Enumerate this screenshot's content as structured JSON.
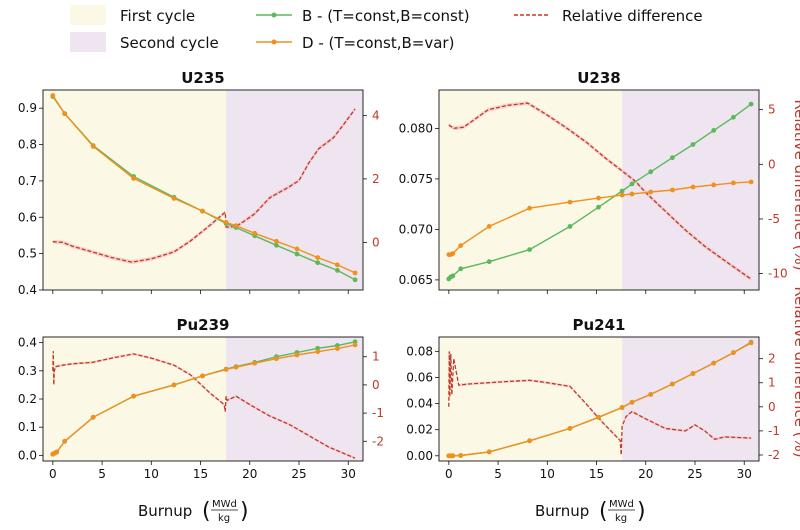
{
  "legend": {
    "first_cycle": "First cycle",
    "second_cycle": "Second cycle",
    "series_b": "B - (T=const,B=const)",
    "series_d": "D - (T=const,B=var)",
    "relative_difference": "Relative difference"
  },
  "colors": {
    "series_b": "#5cb85c",
    "series_d": "#f0901e",
    "relative_difference": "#c0392b",
    "first_cycle_bg": "#fbf8e6",
    "second_cycle_bg": "#efe5f0"
  },
  "x_axis": {
    "label": "Burnup",
    "unit_numerator": "MWd",
    "unit_denominator": "kg"
  },
  "right_axis_label": "Relative difference (%)",
  "chart_data": [
    {
      "type": "line",
      "title": "U235",
      "cycle_boundary": 17.6,
      "xlim": [
        -1,
        31.5
      ],
      "ylim": [
        0.4,
        0.95
      ],
      "y2lim": [
        -1.5,
        4.8
      ],
      "xticks": [
        "0",
        "5",
        "10",
        "15",
        "20",
        "25",
        "30"
      ],
      "yticks": [
        "0.4",
        "0.5",
        "0.6",
        "0.7",
        "0.8",
        "0.9"
      ],
      "y2ticks": [
        "0",
        "2",
        "4"
      ],
      "x": [
        0,
        1.2,
        4.1,
        8.2,
        12.3,
        15.2,
        17.6,
        18.6,
        20.5,
        22.7,
        24.8,
        26.9,
        28.9,
        30.7
      ],
      "series": [
        {
          "name": "B - (T=const,B=const)",
          "values": [
            0.932,
            0.885,
            0.797,
            0.712,
            0.655,
            0.617,
            0.583,
            0.572,
            0.549,
            0.523,
            0.499,
            0.475,
            0.454,
            0.428
          ]
        },
        {
          "name": "D - (T=const,B=var)",
          "values": [
            0.935,
            0.885,
            0.795,
            0.707,
            0.652,
            0.617,
            0.586,
            0.577,
            0.556,
            0.534,
            0.513,
            0.489,
            0.469,
            0.447
          ]
        }
      ],
      "relative_difference": {
        "x": [
          0,
          1,
          2,
          4,
          6,
          8,
          10,
          12.3,
          14,
          16,
          17.5,
          17.6,
          18.6,
          19.5,
          20.5,
          22,
          24,
          25,
          26,
          27,
          28.5,
          29.5,
          30.7
        ],
        "values": [
          0.02,
          0.0,
          -0.12,
          -0.3,
          -0.48,
          -0.62,
          -0.52,
          -0.3,
          0.05,
          0.55,
          0.95,
          0.48,
          0.5,
          0.68,
          0.9,
          1.4,
          1.75,
          1.95,
          2.5,
          2.95,
          3.3,
          3.7,
          4.2
        ]
      }
    },
    {
      "type": "line",
      "title": "U238",
      "cycle_boundary": 17.6,
      "xlim": [
        -1,
        31.5
      ],
      "ylim": [
        0.064,
        0.0838
      ],
      "y2lim": [
        -11.5,
        6.8
      ],
      "xticks": [
        "0",
        "5",
        "10",
        "15",
        "20",
        "25",
        "30"
      ],
      "yticks": [
        "0.065",
        "0.070",
        "0.075",
        "0.080"
      ],
      "y2ticks": [
        "-10",
        "-5",
        "0",
        "5"
      ],
      "x": [
        0,
        0.2,
        0.4,
        1.2,
        4.1,
        8.2,
        12.3,
        15.2,
        17.6,
        18.6,
        20.5,
        22.7,
        24.8,
        26.9,
        28.9,
        30.7
      ],
      "series": [
        {
          "name": "B - (T=const,B=const)",
          "values": [
            0.0651,
            0.0653,
            0.0654,
            0.0661,
            0.0668,
            0.068,
            0.0703,
            0.0722,
            0.0738,
            0.0745,
            0.0757,
            0.0771,
            0.0784,
            0.0798,
            0.0811,
            0.0824
          ]
        },
        {
          "name": "D - (T=const,B=var)",
          "values": [
            0.0675,
            0.0675,
            0.0676,
            0.0684,
            0.0703,
            0.0721,
            0.0727,
            0.0731,
            0.0734,
            0.0735,
            0.0737,
            0.0739,
            0.0742,
            0.0744,
            0.0746,
            0.0747
          ]
        }
      ],
      "relative_difference": {
        "x": [
          0,
          0.5,
          1.5,
          4,
          6,
          8,
          10,
          12,
          14,
          16,
          17.6,
          19,
          20,
          22,
          24,
          26,
          28,
          30.7
        ],
        "values": [
          3.6,
          3.3,
          3.4,
          5.0,
          5.4,
          5.6,
          4.5,
          3.3,
          2.0,
          0.5,
          -0.6,
          -1.6,
          -2.6,
          -4.3,
          -6.0,
          -7.5,
          -8.8,
          -10.5
        ]
      }
    },
    {
      "type": "line",
      "title": "Pu239",
      "cycle_boundary": 17.6,
      "xlim": [
        -1,
        31.5
      ],
      "ylim": [
        -0.02,
        0.42
      ],
      "y2lim": [
        -2.7,
        1.7
      ],
      "xticks": [
        "0",
        "5",
        "10",
        "15",
        "20",
        "25",
        "30"
      ],
      "yticks": [
        "0.0",
        "0.1",
        "0.2",
        "0.3",
        "0.4"
      ],
      "y2ticks": [
        "-2",
        "-1",
        "0",
        "1"
      ],
      "x": [
        0,
        0.2,
        0.4,
        1.2,
        4.1,
        8.2,
        12.3,
        15.2,
        17.6,
        18.6,
        20.5,
        22.7,
        24.8,
        26.9,
        28.9,
        30.7
      ],
      "series": [
        {
          "name": "B - (T=const,B=const)",
          "values": [
            0.004,
            0.008,
            0.012,
            0.05,
            0.135,
            0.21,
            0.25,
            0.282,
            0.306,
            0.315,
            0.33,
            0.35,
            0.365,
            0.38,
            0.39,
            0.403
          ]
        },
        {
          "name": "D - (T=const,B=var)",
          "values": [
            0.004,
            0.008,
            0.012,
            0.05,
            0.135,
            0.21,
            0.25,
            0.282,
            0.305,
            0.313,
            0.327,
            0.343,
            0.356,
            0.368,
            0.379,
            0.392
          ]
        }
      ],
      "relative_difference": {
        "x": [
          0,
          0.05,
          0.1,
          0.15,
          0.3,
          1,
          2,
          4,
          6,
          8.2,
          10,
          12.3,
          14,
          16,
          17.4,
          17.5,
          17.6,
          17.7,
          18.6,
          20,
          22,
          24,
          26,
          28,
          30.7
        ],
        "values": [
          0.5,
          1.2,
          0.0,
          0.5,
          0.65,
          0.7,
          0.75,
          0.8,
          0.95,
          1.1,
          0.95,
          0.7,
          0.35,
          -0.3,
          -0.7,
          -0.95,
          -0.4,
          -0.55,
          -0.4,
          -0.7,
          -1.1,
          -1.4,
          -1.8,
          -2.2,
          -2.6
        ]
      }
    },
    {
      "type": "line",
      "title": "Pu241",
      "cycle_boundary": 17.6,
      "xlim": [
        -1,
        31.5
      ],
      "ylim": [
        -0.004,
        0.091
      ],
      "y2lim": [
        -2.25,
        2.9
      ],
      "xticks": [
        "0",
        "5",
        "10",
        "15",
        "20",
        "25",
        "30"
      ],
      "yticks": [
        "0.00",
        "0.02",
        "0.04",
        "0.06",
        "0.08"
      ],
      "y2ticks": [
        "-2",
        "-1",
        "0",
        "1",
        "2"
      ],
      "x": [
        0,
        0.2,
        0.4,
        1.2,
        4.1,
        8.2,
        12.3,
        15.2,
        17.6,
        18.6,
        20.5,
        22.7,
        24.8,
        26.9,
        28.9,
        30.7
      ],
      "series": [
        {
          "name": "B - (T=const,B=const)",
          "values": [
            0.0,
            0.0,
            0.0,
            0.0002,
            0.003,
            0.0115,
            0.021,
            0.0295,
            0.037,
            0.041,
            0.047,
            0.055,
            0.063,
            0.071,
            0.079,
            0.087
          ]
        },
        {
          "name": "D - (T=const,B=var)",
          "values": [
            0.0,
            0.0,
            0.0,
            0.0002,
            0.003,
            0.0115,
            0.021,
            0.0295,
            0.037,
            0.041,
            0.047,
            0.055,
            0.063,
            0.071,
            0.079,
            0.0865
          ]
        }
      ],
      "relative_difference": {
        "x": [
          0,
          0.05,
          0.1,
          0.2,
          0.3,
          0.5,
          1,
          2,
          4,
          6,
          8.2,
          10,
          12.3,
          14,
          15.5,
          17.4,
          17.5,
          17.6,
          18,
          18.6,
          20,
          22,
          24,
          25,
          26,
          27,
          28,
          30.7
        ],
        "values": [
          0.0,
          2.3,
          0.4,
          2.2,
          0.5,
          2.0,
          0.9,
          0.95,
          1.0,
          1.05,
          1.1,
          1.0,
          0.85,
          0.1,
          -0.6,
          -1.4,
          -2.0,
          -0.8,
          -0.4,
          -0.2,
          -0.5,
          -0.9,
          -1.0,
          -0.75,
          -1.0,
          -1.35,
          -1.25,
          -1.3
        ]
      }
    }
  ]
}
